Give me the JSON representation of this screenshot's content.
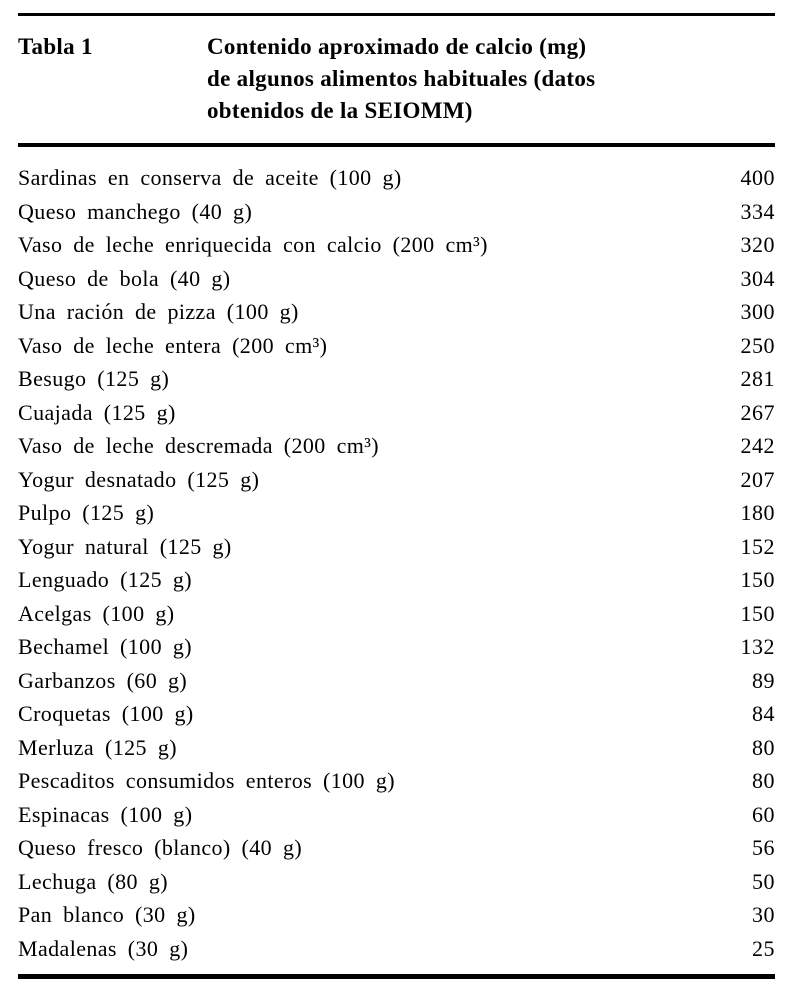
{
  "colors": {
    "text": "#000000",
    "background": "#ffffff",
    "rule": "#000000"
  },
  "table": {
    "label": "Tabla 1",
    "title_lines": [
      "Contenido aproximado de calcio (mg)",
      "de algunos alimentos habituales (datos",
      "obtenidos de la SEIOMM)"
    ],
    "rows": [
      {
        "item": "Sardinas en conserva de aceite (100 g)",
        "value": "400"
      },
      {
        "item": "Queso manchego (40 g)",
        "value": "334"
      },
      {
        "item": "Vaso de leche enriquecida con calcio (200 cm³)",
        "value": "320"
      },
      {
        "item": "Queso de bola (40 g)",
        "value": "304"
      },
      {
        "item": "Una ración de pizza (100 g)",
        "value": "300"
      },
      {
        "item": "Vaso de leche entera (200 cm³)",
        "value": "250"
      },
      {
        "item": "Besugo (125 g)",
        "value": "281"
      },
      {
        "item": "Cuajada (125 g)",
        "value": "267"
      },
      {
        "item": "Vaso de leche descremada (200 cm³)",
        "value": "242"
      },
      {
        "item": "Yogur desnatado (125 g)",
        "value": "207"
      },
      {
        "item": "Pulpo (125 g)",
        "value": "180"
      },
      {
        "item": "Yogur natural (125 g)",
        "value": "152"
      },
      {
        "item": "Lenguado (125 g)",
        "value": "150"
      },
      {
        "item": "Acelgas (100 g)",
        "value": "150"
      },
      {
        "item": "Bechamel (100 g)",
        "value": "132"
      },
      {
        "item": "Garbanzos (60 g)",
        "value": "89"
      },
      {
        "item": "Croquetas (100 g)",
        "value": "84"
      },
      {
        "item": "Merluza (125 g)",
        "value": "80"
      },
      {
        "item": "Pescaditos consumidos enteros (100 g)",
        "value": "80"
      },
      {
        "item": "Espinacas (100 g)",
        "value": "60"
      },
      {
        "item": "Queso fresco (blanco) (40 g)",
        "value": "56"
      },
      {
        "item": "Lechuga (80 g)",
        "value": "50"
      },
      {
        "item": "Pan blanco (30 g)",
        "value": "30"
      },
      {
        "item": "Madalenas (30 g)",
        "value": "25"
      }
    ]
  }
}
